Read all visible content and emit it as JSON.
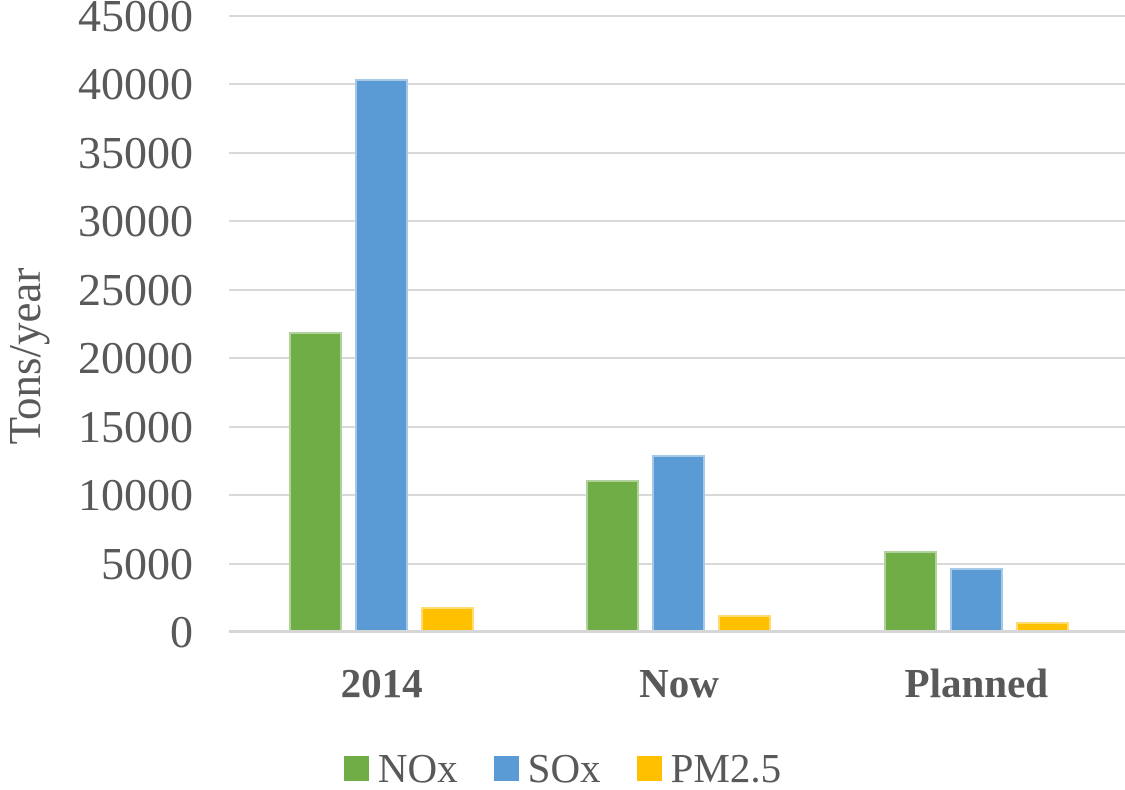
{
  "chart_data": {
    "type": "bar",
    "categories": [
      "2014",
      "Now",
      "Planned"
    ],
    "series": [
      {
        "name": "NOx",
        "color": "#70AD47",
        "values": [
          21900,
          11100,
          5900
        ]
      },
      {
        "name": "SOx",
        "color": "#5B9BD5",
        "values": [
          40400,
          12900,
          4700
        ]
      },
      {
        "name": "PM2.5",
        "color": "#FFC000",
        "values": [
          1800,
          1250,
          700
        ]
      }
    ],
    "title": "",
    "xlabel": "",
    "ylabel": "Tons/year",
    "ylim": [
      0,
      45000
    ],
    "ytick_step": 5000,
    "ytick_labels": [
      "0",
      "5000",
      "10000",
      "15000",
      "20000",
      "25000",
      "30000",
      "35000",
      "40000",
      "45000"
    ],
    "grid": true,
    "legend_position": "bottom",
    "colors": {
      "grid": "#D9D9D9",
      "axis": "#D6D6D6",
      "text": "#595959"
    }
  }
}
